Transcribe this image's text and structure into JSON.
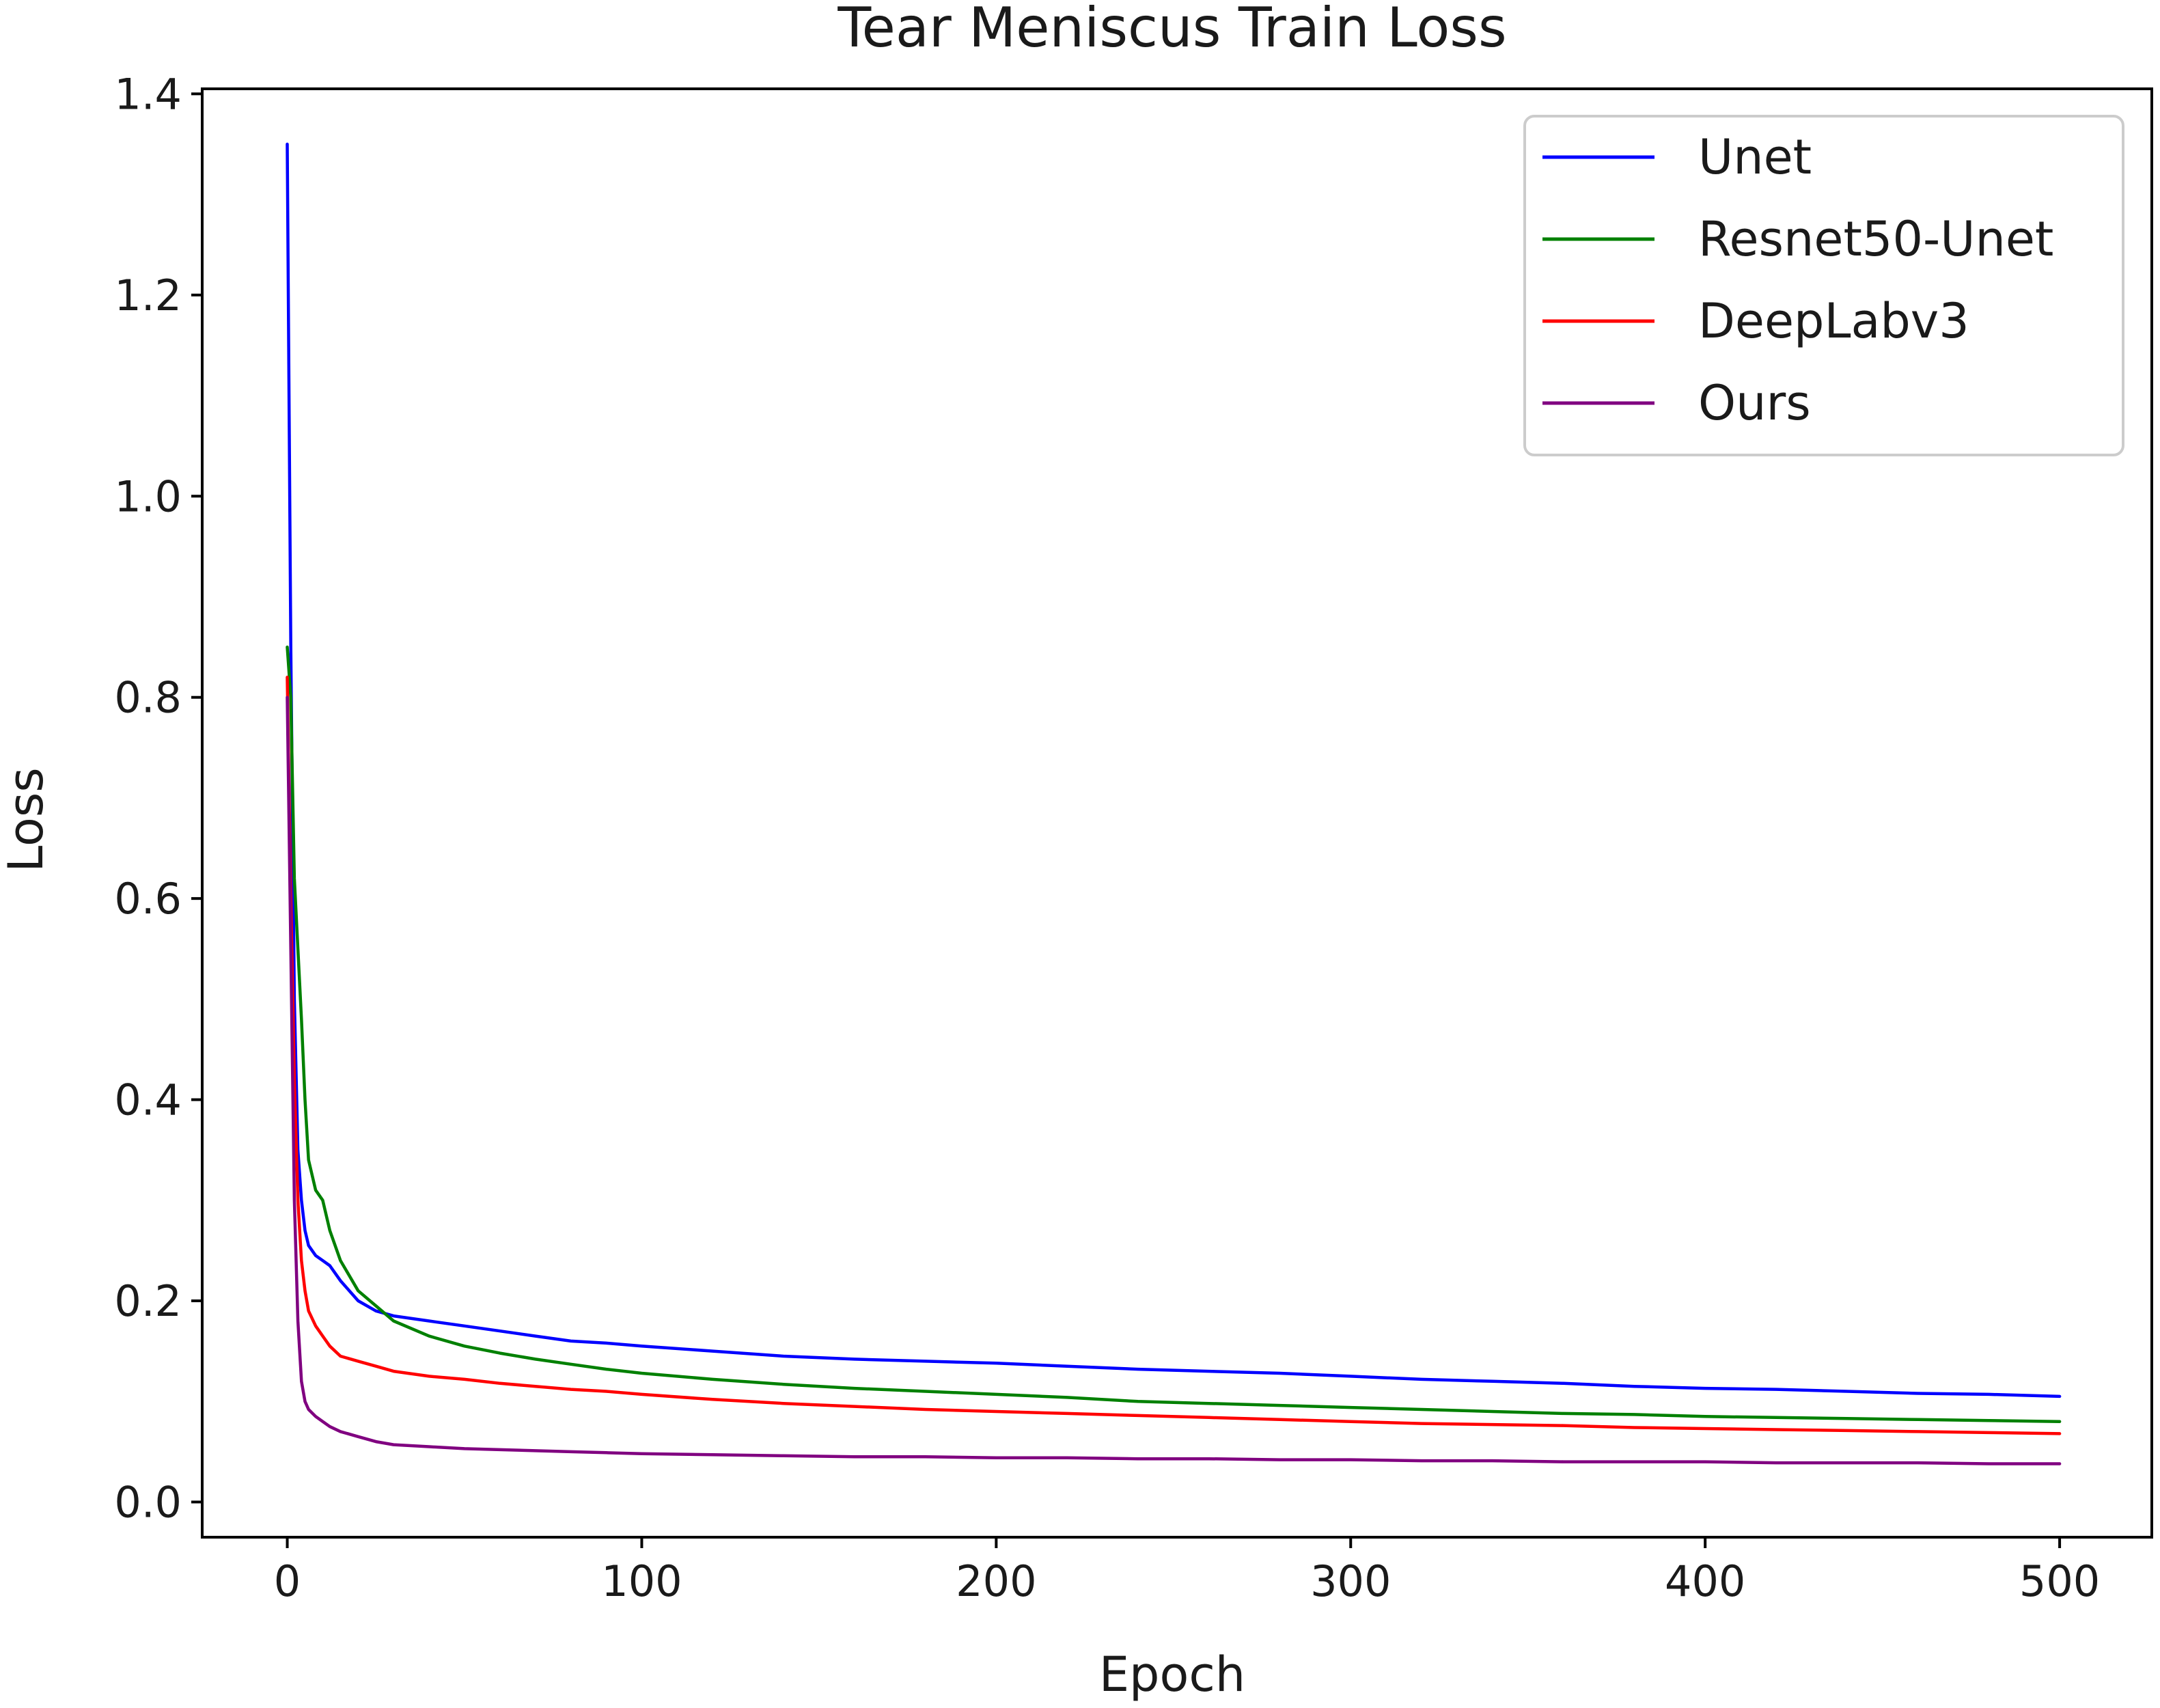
{
  "chart_data": {
    "type": "line",
    "title": "Tear Meniscus Train Loss",
    "xlabel": "Epoch",
    "ylabel": "Loss",
    "xlim": [
      -24,
      526
    ],
    "ylim": [
      -0.035,
      1.405
    ],
    "xticks": [
      0,
      100,
      200,
      300,
      400,
      500
    ],
    "yticks": [
      0.0,
      0.2,
      0.4,
      0.6,
      0.8,
      1.0,
      1.2,
      1.4
    ],
    "xtick_labels": [
      "0",
      "100",
      "200",
      "300",
      "400",
      "500"
    ],
    "ytick_labels": [
      "0.0",
      "0.2",
      "0.4",
      "0.6",
      "0.8",
      "1.0",
      "1.2",
      "1.4"
    ],
    "grid": false,
    "legend": "top-right",
    "series": [
      {
        "name": "Unet",
        "color": "#0000ff",
        "x": [
          0,
          1,
          2,
          3,
          4,
          5,
          6,
          8,
          10,
          12,
          15,
          20,
          25,
          30,
          40,
          50,
          60,
          70,
          80,
          90,
          100,
          120,
          140,
          160,
          180,
          200,
          220,
          240,
          260,
          280,
          300,
          320,
          340,
          360,
          380,
          400,
          420,
          440,
          460,
          480,
          500
        ],
        "y": [
          1.35,
          0.85,
          0.5,
          0.35,
          0.3,
          0.27,
          0.255,
          0.245,
          0.24,
          0.235,
          0.22,
          0.2,
          0.19,
          0.185,
          0.18,
          0.175,
          0.17,
          0.165,
          0.16,
          0.158,
          0.155,
          0.15,
          0.145,
          0.142,
          0.14,
          0.138,
          0.135,
          0.132,
          0.13,
          0.128,
          0.125,
          0.122,
          0.12,
          0.118,
          0.115,
          0.113,
          0.112,
          0.11,
          0.108,
          0.107,
          0.105
        ]
      },
      {
        "name": "Resnet50-Unet",
        "color": "#008000",
        "x": [
          0,
          1,
          2,
          3,
          4,
          5,
          6,
          8,
          10,
          12,
          15,
          20,
          25,
          30,
          40,
          50,
          60,
          70,
          80,
          90,
          100,
          120,
          140,
          160,
          180,
          200,
          220,
          240,
          260,
          280,
          300,
          320,
          340,
          360,
          380,
          400,
          420,
          440,
          460,
          480,
          500
        ],
        "y": [
          0.85,
          0.8,
          0.62,
          0.55,
          0.48,
          0.4,
          0.34,
          0.31,
          0.3,
          0.27,
          0.24,
          0.21,
          0.195,
          0.18,
          0.165,
          0.155,
          0.148,
          0.142,
          0.137,
          0.132,
          0.128,
          0.122,
          0.117,
          0.113,
          0.11,
          0.107,
          0.104,
          0.1,
          0.098,
          0.096,
          0.094,
          0.092,
          0.09,
          0.088,
          0.087,
          0.085,
          0.084,
          0.083,
          0.082,
          0.081,
          0.08
        ]
      },
      {
        "name": "DeepLabv3",
        "color": "#ff0000",
        "x": [
          0,
          1,
          2,
          3,
          4,
          5,
          6,
          8,
          10,
          12,
          15,
          20,
          25,
          30,
          40,
          50,
          60,
          70,
          80,
          90,
          100,
          120,
          140,
          160,
          180,
          200,
          220,
          240,
          260,
          280,
          300,
          320,
          340,
          360,
          380,
          400,
          420,
          440,
          460,
          480,
          500
        ],
        "y": [
          0.82,
          0.6,
          0.42,
          0.3,
          0.24,
          0.21,
          0.19,
          0.175,
          0.165,
          0.155,
          0.145,
          0.14,
          0.135,
          0.13,
          0.125,
          0.122,
          0.118,
          0.115,
          0.112,
          0.11,
          0.107,
          0.102,
          0.098,
          0.095,
          0.092,
          0.09,
          0.088,
          0.086,
          0.084,
          0.082,
          0.08,
          0.078,
          0.077,
          0.076,
          0.074,
          0.073,
          0.072,
          0.071,
          0.07,
          0.069,
          0.068
        ]
      },
      {
        "name": "Ours",
        "color": "#800080",
        "x": [
          0,
          1,
          2,
          3,
          4,
          5,
          6,
          8,
          10,
          12,
          15,
          20,
          25,
          30,
          40,
          50,
          60,
          70,
          80,
          90,
          100,
          120,
          140,
          160,
          180,
          200,
          220,
          240,
          260,
          280,
          300,
          320,
          340,
          360,
          380,
          400,
          420,
          440,
          460,
          480,
          500
        ],
        "y": [
          0.8,
          0.55,
          0.3,
          0.18,
          0.12,
          0.1,
          0.092,
          0.085,
          0.08,
          0.075,
          0.07,
          0.065,
          0.06,
          0.057,
          0.055,
          0.053,
          0.052,
          0.051,
          0.05,
          0.049,
          0.048,
          0.047,
          0.046,
          0.045,
          0.045,
          0.044,
          0.044,
          0.043,
          0.043,
          0.042,
          0.042,
          0.041,
          0.041,
          0.04,
          0.04,
          0.04,
          0.039,
          0.039,
          0.039,
          0.038,
          0.038
        ]
      }
    ]
  }
}
